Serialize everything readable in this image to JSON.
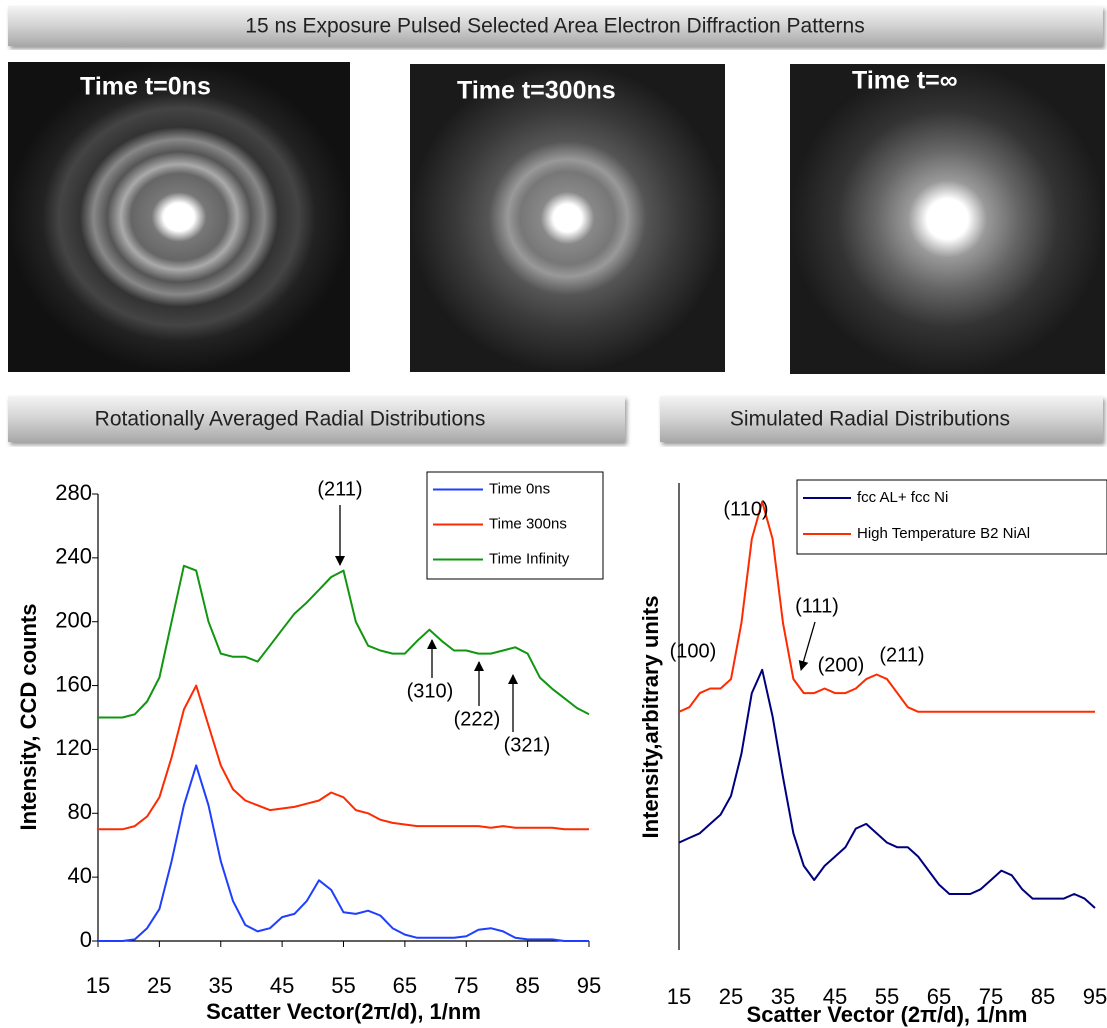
{
  "header": {
    "title": "15 ns Exposure Pulsed Selected Area Electron Diffraction Patterns"
  },
  "images": [
    {
      "label": "Time t=0ns"
    },
    {
      "label": "Time t=300ns"
    },
    {
      "label": "Time t=∞"
    }
  ],
  "sections": [
    "Rotationally Averaged Radial Distributions",
    "Simulated Radial Distributions"
  ],
  "chart_data": [
    {
      "type": "line",
      "xlabel": "Scatter Vector(2π/d), 1/nm",
      "ylabel": "Intensity, CCD counts",
      "x": [
        15,
        17,
        19,
        21,
        23,
        25,
        27,
        29,
        31,
        33,
        35,
        37,
        39,
        41,
        43,
        45,
        47,
        49,
        51,
        53,
        55,
        57,
        59,
        61,
        63,
        65,
        67,
        69,
        71,
        73,
        75,
        77,
        79,
        81,
        83,
        85,
        87,
        89,
        91,
        93,
        95
      ],
      "series": [
        {
          "name": "Time 0ns",
          "color": "#1f3fff",
          "values": [
            0,
            0,
            0,
            1,
            8,
            20,
            50,
            85,
            110,
            85,
            50,
            25,
            10,
            6,
            8,
            15,
            17,
            25,
            38,
            32,
            18,
            17,
            19,
            16,
            8,
            4,
            2,
            2,
            2,
            2,
            3,
            7,
            8,
            6,
            2,
            1,
            1,
            1,
            0,
            0,
            0
          ]
        },
        {
          "name": "Time 300ns",
          "color": "#ff2a00",
          "values": [
            70,
            70,
            70,
            72,
            78,
            90,
            115,
            145,
            160,
            135,
            110,
            95,
            88,
            85,
            82,
            83,
            84,
            86,
            88,
            93,
            90,
            82,
            80,
            76,
            74,
            73,
            72,
            72,
            72,
            72,
            72,
            72,
            71,
            72,
            71,
            71,
            71,
            71,
            70,
            70,
            70
          ]
        },
        {
          "name": "Time Infinity",
          "color": "#119611",
          "values": [
            140,
            140,
            140,
            142,
            150,
            165,
            200,
            235,
            232,
            200,
            180,
            178,
            178,
            175,
            185,
            195,
            205,
            212,
            220,
            228,
            232,
            200,
            185,
            182,
            180,
            180,
            188,
            195,
            188,
            182,
            182,
            180,
            180,
            182,
            184,
            180,
            165,
            158,
            152,
            146,
            142
          ]
        }
      ],
      "xlim": [
        15,
        95
      ],
      "xticks": [
        15,
        25,
        35,
        45,
        55,
        65,
        75,
        85,
        95
      ],
      "ylim": [
        0,
        280
      ],
      "yticks": [
        0,
        40,
        80,
        120,
        160,
        200,
        240,
        280
      ],
      "legend": "upper right",
      "annotations": [
        "(211)",
        "(310)",
        "(222)",
        "(321)"
      ]
    },
    {
      "type": "line",
      "xlabel": "Scatter Vector (2π/d), 1/nm",
      "ylabel": "Intensity,arbitrary units",
      "x": [
        15,
        17,
        19,
        21,
        23,
        25,
        27,
        29,
        31,
        33,
        35,
        37,
        39,
        41,
        43,
        45,
        47,
        49,
        51,
        53,
        55,
        57,
        59,
        61,
        63,
        65,
        67,
        69,
        71,
        73,
        75,
        77,
        79,
        81,
        83,
        85,
        87,
        89,
        91,
        93,
        95
      ],
      "series": [
        {
          "name": "fcc AL+ fcc Ni",
          "color": "#00007f",
          "values": [
            23,
            24,
            25,
            27,
            29,
            33,
            42,
            55,
            60,
            50,
            37,
            25,
            18,
            15,
            18,
            20,
            22,
            26,
            27,
            25,
            23,
            22,
            22,
            20,
            17,
            14,
            12,
            12,
            12,
            13,
            15,
            17,
            16,
            13,
            11,
            11,
            11,
            11,
            12,
            11,
            9
          ]
        },
        {
          "name": "High Temperature B2 NiAl",
          "color": "#ff2a00",
          "values": [
            51,
            52,
            55,
            56,
            56,
            58,
            70,
            88,
            96,
            88,
            70,
            58,
            55,
            55,
            56,
            55,
            55,
            56,
            58,
            59,
            58,
            55,
            52,
            51,
            51,
            51,
            51,
            51,
            51,
            51,
            51,
            51,
            51,
            51,
            51,
            51,
            51,
            51,
            51,
            51,
            51
          ]
        }
      ],
      "xlim": [
        15,
        95
      ],
      "xticks": [
        15,
        25,
        35,
        45,
        55,
        65,
        75,
        85,
        95
      ],
      "ylim": [
        0,
        100
      ],
      "legend": "upper right",
      "annotations": [
        "(110)",
        "(100)",
        "(111)",
        "(200)",
        "(211)"
      ]
    }
  ]
}
